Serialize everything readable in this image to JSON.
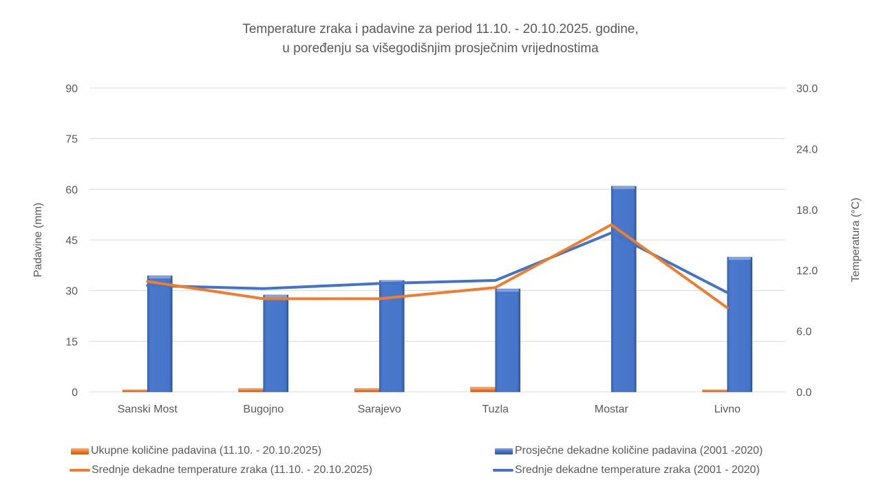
{
  "chart_data": {
    "type": "bar",
    "title": "Temperature zraka i padavine za period 11.10. - 20.10.2025. godine,",
    "subtitle": "u poređenju sa višegodišnjim prosječnim vrijednostima",
    "categories": [
      "Sanski Most",
      "Bugojno",
      "Sarajevo",
      "Tuzla",
      "Mostar",
      "Livno"
    ],
    "y_left": {
      "label": "Padavine (mm)",
      "lim": [
        0,
        90
      ],
      "ticks": [
        0,
        15,
        30,
        45,
        60,
        75,
        90
      ],
      "tick_labels": [
        "0",
        "15",
        "30",
        "45",
        "60",
        "75",
        "90"
      ]
    },
    "y_right": {
      "label": "Temperatura (°C)",
      "lim": [
        0,
        30
      ],
      "ticks": [
        0,
        6,
        12,
        18,
        24,
        30
      ],
      "tick_labels": [
        "0.0",
        "6.0",
        "12.0",
        "18.0",
        "24.0",
        "30.0"
      ]
    },
    "grid": true,
    "legend_position": "bottom",
    "series": [
      {
        "name": "Ukupne količine padavina (11.10. - 20.10.2025)",
        "kind": "bar",
        "axis": "left",
        "color": "#ED7D31",
        "values": [
          0.6,
          1.0,
          1.0,
          1.4,
          0.0,
          0.6
        ]
      },
      {
        "name": "Prosječne dekadne količine padavina (2001 -2020)",
        "kind": "bar",
        "axis": "left",
        "color": "#4472C4",
        "values": [
          34.4,
          28.7,
          33.0,
          30.5,
          60.9,
          39.9
        ]
      },
      {
        "name": "Srednje dekadne temperature zraka (11.10. - 20.10.2025)",
        "kind": "line",
        "axis": "right",
        "color": "#ED7D31",
        "values": [
          10.9,
          9.2,
          9.2,
          10.3,
          16.5,
          8.3
        ]
      },
      {
        "name": "Srednje dekadne temperature zraka (2001 - 2020)",
        "kind": "line",
        "axis": "right",
        "color": "#4472C4",
        "values": [
          10.5,
          10.2,
          10.7,
          11.0,
          15.7,
          9.8
        ]
      }
    ]
  }
}
